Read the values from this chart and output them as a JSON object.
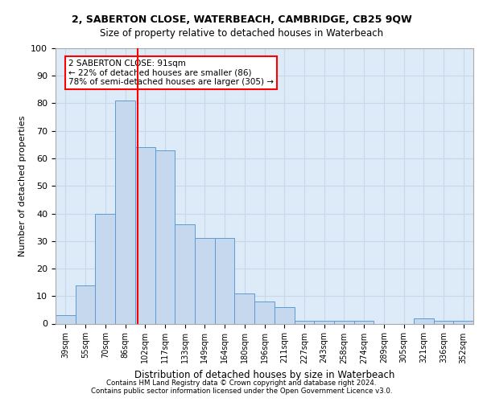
{
  "title1": "2, SABERTON CLOSE, WATERBEACH, CAMBRIDGE, CB25 9QW",
  "title2": "Size of property relative to detached houses in Waterbeach",
  "xlabel": "Distribution of detached houses by size in Waterbeach",
  "ylabel": "Number of detached properties",
  "categories": [
    "39sqm",
    "55sqm",
    "70sqm",
    "86sqm",
    "102sqm",
    "117sqm",
    "133sqm",
    "149sqm",
    "164sqm",
    "180sqm",
    "196sqm",
    "211sqm",
    "227sqm",
    "243sqm",
    "258sqm",
    "274sqm",
    "289sqm",
    "305sqm",
    "321sqm",
    "336sqm",
    "352sqm"
  ],
  "values": [
    3,
    14,
    40,
    81,
    64,
    63,
    36,
    31,
    31,
    11,
    8,
    6,
    1,
    1,
    1,
    1,
    0,
    0,
    2,
    1,
    1
  ],
  "bar_color": "#c5d8ed",
  "bar_edge_color": "#5b9bd5",
  "red_line_x": 3.62,
  "annotation_text": "2 SABERTON CLOSE: 91sqm\n← 22% of detached houses are smaller (86)\n78% of semi-detached houses are larger (305) →",
  "annotation_box_color": "white",
  "annotation_box_edge_color": "red",
  "grid_color": "#c8d8e8",
  "background_color": "#ddeaf7",
  "footer1": "Contains HM Land Registry data © Crown copyright and database right 2024.",
  "footer2": "Contains public sector information licensed under the Open Government Licence v3.0.",
  "ylim": [
    0,
    100
  ],
  "yticks": [
    0,
    10,
    20,
    30,
    40,
    50,
    60,
    70,
    80,
    90,
    100
  ]
}
